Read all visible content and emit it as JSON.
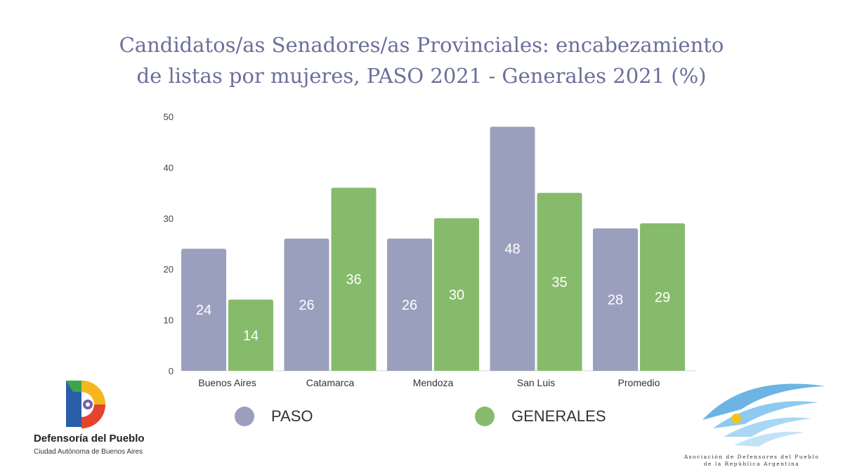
{
  "title_line1": "Candidatos/as Senadores/as Provinciales: encabezamiento",
  "title_line2": "de listas por mujeres, PASO 2021 - Generales 2021 (%)",
  "chart_data": {
    "type": "bar",
    "title": "Candidatos/as Senadores/as Provinciales: encabezamiento de listas por mujeres, PASO 2021 - Generales 2021 (%)",
    "categories": [
      "Buenos Aires",
      "Catamarca",
      "Mendoza",
      "San Luis",
      "Promedio"
    ],
    "series": [
      {
        "name": "PASO",
        "values": [
          24,
          26,
          26,
          48,
          28
        ],
        "color": "#9a9fbd"
      },
      {
        "name": "GENERALES",
        "values": [
          14,
          36,
          30,
          35,
          29
        ],
        "color": "#86bb6c"
      }
    ],
    "ylim": [
      0,
      50
    ],
    "yticks": [
      0,
      10,
      20,
      30,
      40,
      50
    ],
    "xlabel": "",
    "ylabel": "",
    "grid": false,
    "legend": "bottom"
  },
  "legend": {
    "paso": "PASO",
    "generales": "GENERALES"
  },
  "logos": {
    "left_name": "Defensoría del Pueblo",
    "left_sub": "Ciudad Autónoma de Buenos Aires",
    "right_line1": "Asociación de Defensores del Pueblo",
    "right_line2": "de la República Argentina"
  },
  "colors": {
    "title": "#6b6f9a",
    "paso": "#9a9fbd",
    "generales": "#86bb6c",
    "label_inside": "#ffffff"
  }
}
